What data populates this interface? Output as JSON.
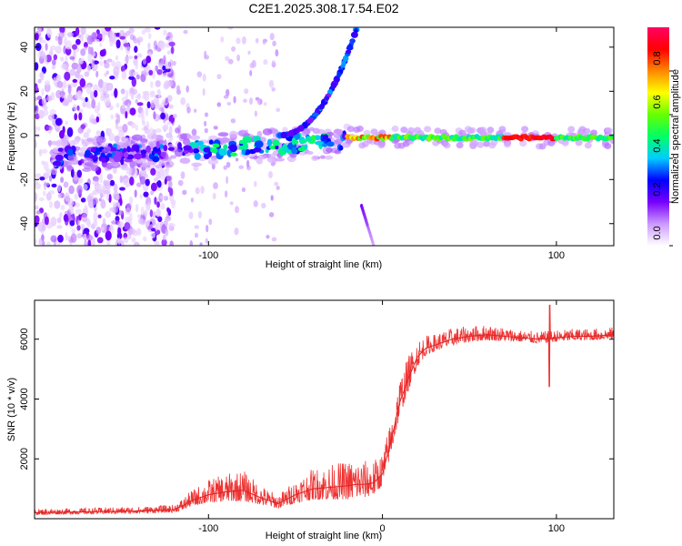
{
  "figure_title": "C2E1.2025.308.17.54.E02",
  "chart_data": [
    {
      "type": "heatmap",
      "title": "",
      "xlabel": "Height of straight line (km)",
      "ylabel": "Frequency (Hz)",
      "xlim": [
        -200,
        133
      ],
      "ylim": [
        -50,
        49
      ],
      "xticks": [
        -100,
        100
      ],
      "yticks": [
        -40,
        -20,
        0,
        20,
        40
      ],
      "colorbar": {
        "label": "Normalized spectral amplitude",
        "range": [
          0.0,
          1.0
        ],
        "ticks": [
          0.0,
          0.2,
          0.4,
          0.6,
          0.8
        ],
        "colors": [
          "#ffffff",
          "#cc99ff",
          "#7700ff",
          "#0000ff",
          "#00ccff",
          "#00ff66",
          "#66ff00",
          "#ffff00",
          "#ff8800",
          "#ff0000",
          "#ff0066"
        ]
      },
      "features": [
        {
          "name": "main echo trace",
          "x_range": [
            -20,
            133
          ],
          "frequency_hz": -1,
          "amplitude_range": [
            0.3,
            1.0
          ]
        },
        {
          "name": "lower ionosphere trace",
          "x_range": [
            -190,
            -20
          ],
          "frequency_hz": -6,
          "amplitude_range": [
            0.1,
            0.5
          ]
        },
        {
          "name": "rising branch",
          "x_range": [
            -60,
            -15
          ],
          "frequency_range_hz": [
            0,
            48
          ]
        },
        {
          "name": "falling branch",
          "x_range": [
            -12,
            -5
          ],
          "frequency_range_hz": [
            -32,
            -50
          ]
        },
        {
          "name": "noise region",
          "x_range": [
            -200,
            -120
          ],
          "frequency_range_hz": [
            -50,
            49
          ]
        }
      ]
    },
    {
      "type": "line",
      "title": "",
      "xlabel": "Height of straight line (km)",
      "ylabel": "SNR (10 * v/v)",
      "xlim": [
        -200,
        133
      ],
      "ylim": [
        0,
        7300
      ],
      "xticks": [
        -100,
        0,
        100
      ],
      "yticks": [
        2000,
        4000,
        6000
      ],
      "series": [
        {
          "name": "SNR",
          "color": "#ee3333",
          "x": [
            -200,
            -180,
            -160,
            -140,
            -120,
            -115,
            -110,
            -100,
            -90,
            -80,
            -70,
            -60,
            -50,
            -45,
            -40,
            -30,
            -20,
            -15,
            -10,
            -5,
            0,
            5,
            10,
            15,
            20,
            25,
            30,
            35,
            40,
            50,
            60,
            70,
            80,
            90,
            100,
            110,
            120,
            133
          ],
          "values": [
            200,
            220,
            240,
            260,
            300,
            420,
            600,
            800,
            900,
            950,
            700,
            500,
            800,
            900,
            1000,
            1050,
            1100,
            1150,
            1150,
            1200,
            1500,
            2600,
            3900,
            4700,
            5400,
            5700,
            5800,
            5900,
            6000,
            6100,
            6150,
            6100,
            6050,
            6000,
            6050,
            6100,
            6100,
            6150
          ],
          "spread": [
            150,
            150,
            160,
            170,
            200,
            300,
            400,
            600,
            700,
            800,
            500,
            350,
            600,
            700,
            800,
            900,
            1000,
            1000,
            950,
            900,
            850,
            900,
            1000,
            900,
            700,
            500,
            450,
            450,
            450,
            400,
            400,
            350,
            300,
            300,
            300,
            300,
            300,
            300
          ]
        }
      ],
      "annotations": [
        {
          "x": 96,
          "y_min": 4400,
          "y_max": 7150,
          "note": "spike"
        }
      ]
    }
  ]
}
